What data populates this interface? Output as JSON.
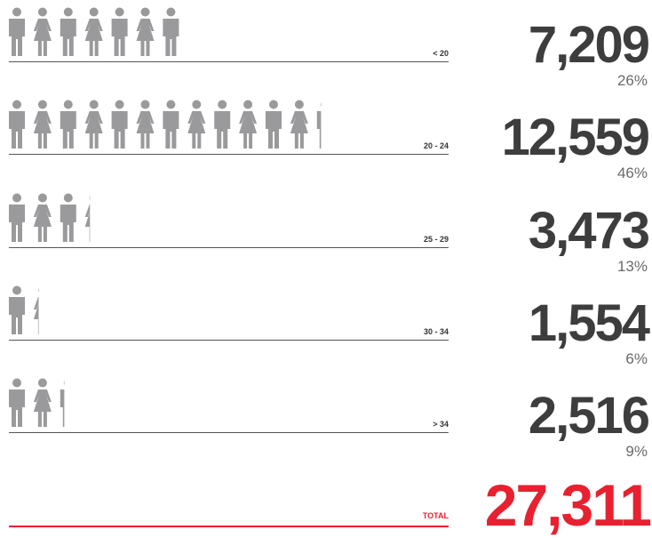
{
  "chart_data": {
    "type": "pictogram",
    "categories": [
      "< 20",
      "20 - 24",
      "25 - 29",
      "30 - 34",
      "> 34"
    ],
    "values": [
      7209,
      12559,
      3473,
      1554,
      2516
    ],
    "value_labels": [
      "7,209",
      "12,559",
      "3,473",
      "1,554",
      "2,516"
    ],
    "percentages": [
      "26%",
      "46%",
      "13%",
      "6%",
      "9%"
    ],
    "icon_counts": [
      7,
      12.3,
      3.3,
      1.3,
      2.3
    ],
    "total_label": "TOTAL",
    "total_value": "27,311"
  },
  "colors": {
    "icon": "#9a9a9c",
    "value": "#3d3d3d",
    "percent": "#6a6a6a",
    "total": "#e8202f"
  },
  "icons": [
    "male-figure-icon",
    "female-figure-icon"
  ]
}
